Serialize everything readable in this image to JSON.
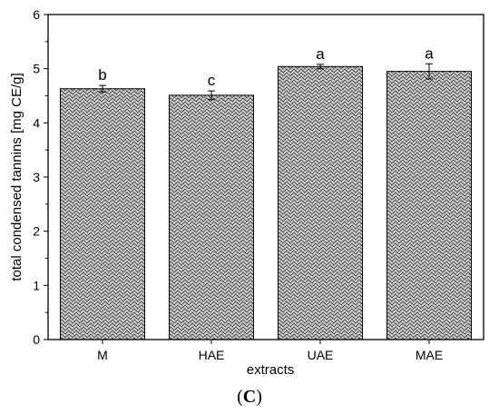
{
  "chart_data": {
    "type": "bar",
    "categories": [
      "M",
      "HAE",
      "UAE",
      "MAE"
    ],
    "values": [
      4.63,
      4.51,
      5.04,
      4.95
    ],
    "errors": [
      0.06,
      0.08,
      0.04,
      0.14
    ],
    "significance_letters": [
      "b",
      "c",
      "a",
      "a"
    ],
    "xlabel": "extracts",
    "ylabel": "total condensed tannins [mg CE/g]",
    "ylim": [
      0,
      6
    ],
    "yticks": [
      "0",
      "1",
      "2",
      "3",
      "4",
      "5",
      "6"
    ],
    "grid": false,
    "legend": "none",
    "bar_fill": "#d3d3d3",
    "bar_pattern": "crosshatch-zigzag",
    "panel_label": {
      "open": "(",
      "letter": "C",
      "close": ")"
    }
  }
}
